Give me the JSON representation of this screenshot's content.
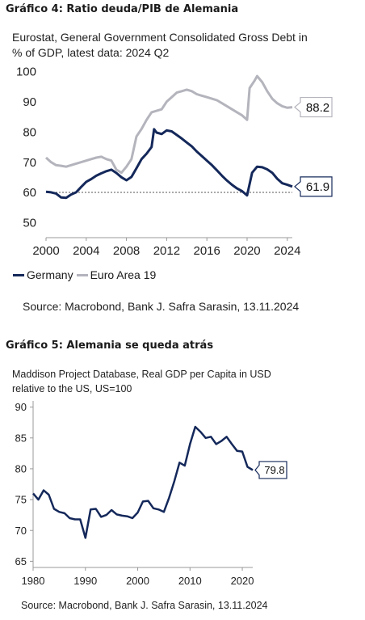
{
  "chart_data": [
    {
      "type": "line",
      "figure_caption": "Gráfico 4: Ratio deuda/PIB de Alemania",
      "subtitle_lines": [
        "Eurostat, General Government Consolidated Gross Debt in",
        "% of GDP, latest data: 2024 Q2"
      ],
      "source": "Source: Macrobond, Bank J. Safra Sarasin, 13.11.2024",
      "xlim": [
        2000,
        2024.5
      ],
      "ylim": [
        45,
        102
      ],
      "x_ticks": [
        "2000",
        "2004",
        "2008",
        "2012",
        "2016",
        "2020",
        "2024"
      ],
      "y_ticks": [
        "50",
        "60",
        "70",
        "80",
        "90",
        "100"
      ],
      "reference_line": 60,
      "series": [
        {
          "name": "Germany",
          "color": "#14285a",
          "end_label": "61.9",
          "points": [
            [
              2000,
              60.2
            ],
            [
              2000.5,
              60.0
            ],
            [
              2001,
              59.6
            ],
            [
              2001.5,
              58.3
            ],
            [
              2002,
              58.2
            ],
            [
              2002.5,
              59.3
            ],
            [
              2003,
              60.0
            ],
            [
              2003.5,
              61.8
            ],
            [
              2004,
              63.5
            ],
            [
              2004.5,
              64.4
            ],
            [
              2005,
              65.5
            ],
            [
              2005.5,
              66.3
            ],
            [
              2006,
              67.0
            ],
            [
              2006.5,
              67.5
            ],
            [
              2007,
              66.4
            ],
            [
              2007.5,
              65.0
            ],
            [
              2008,
              64.0
            ],
            [
              2008.5,
              65.1
            ],
            [
              2009,
              68.0
            ],
            [
              2009.5,
              71.0
            ],
            [
              2010,
              72.8
            ],
            [
              2010.5,
              75.0
            ],
            [
              2010.75,
              80.9
            ],
            [
              2011,
              79.8
            ],
            [
              2011.5,
              79.3
            ],
            [
              2012,
              80.5
            ],
            [
              2012.5,
              80.2
            ],
            [
              2013,
              79.0
            ],
            [
              2013.5,
              77.8
            ],
            [
              2014,
              76.5
            ],
            [
              2014.5,
              75.2
            ],
            [
              2015,
              73.5
            ],
            [
              2015.5,
              72.0
            ],
            [
              2016,
              70.5
            ],
            [
              2016.5,
              69.0
            ],
            [
              2017,
              67.3
            ],
            [
              2017.5,
              65.5
            ],
            [
              2018,
              63.9
            ],
            [
              2018.5,
              62.5
            ],
            [
              2019,
              61.3
            ],
            [
              2019.5,
              60.4
            ],
            [
              2020,
              59.0
            ],
            [
              2020.5,
              66.5
            ],
            [
              2021,
              68.5
            ],
            [
              2021.5,
              68.3
            ],
            [
              2022,
              67.6
            ],
            [
              2022.5,
              66.5
            ],
            [
              2023,
              64.5
            ],
            [
              2023.5,
              63.0
            ],
            [
              2024,
              62.5
            ],
            [
              2024.5,
              61.9
            ]
          ]
        },
        {
          "name": "Euro Area 19",
          "color": "#b4b4bd",
          "end_label": "88.2",
          "points": [
            [
              2000,
              71.5
            ],
            [
              2000.5,
              70.0
            ],
            [
              2001,
              69.0
            ],
            [
              2001.5,
              68.8
            ],
            [
              2002,
              68.5
            ],
            [
              2002.5,
              69.0
            ],
            [
              2003,
              69.5
            ],
            [
              2003.5,
              70.0
            ],
            [
              2004,
              70.5
            ],
            [
              2004.5,
              71.0
            ],
            [
              2005,
              71.5
            ],
            [
              2005.5,
              71.8
            ],
            [
              2006,
              71.0
            ],
            [
              2006.5,
              70.5
            ],
            [
              2007,
              67.5
            ],
            [
              2007.5,
              66.5
            ],
            [
              2008,
              68.5
            ],
            [
              2008.5,
              71.0
            ],
            [
              2009,
              78.5
            ],
            [
              2009.5,
              81.0
            ],
            [
              2010,
              84.0
            ],
            [
              2010.5,
              86.5
            ],
            [
              2011,
              87.0
            ],
            [
              2011.5,
              87.5
            ],
            [
              2012,
              90.0
            ],
            [
              2012.5,
              91.5
            ],
            [
              2013,
              93.0
            ],
            [
              2013.5,
              93.5
            ],
            [
              2014,
              94.0
            ],
            [
              2014.5,
              93.5
            ],
            [
              2015,
              92.5
            ],
            [
              2015.5,
              92.0
            ],
            [
              2016,
              91.5
            ],
            [
              2016.5,
              91.0
            ],
            [
              2017,
              90.5
            ],
            [
              2017.5,
              89.5
            ],
            [
              2018,
              88.5
            ],
            [
              2018.5,
              87.5
            ],
            [
              2019,
              86.5
            ],
            [
              2019.5,
              85.5
            ],
            [
              2020,
              84.0
            ],
            [
              2020.25,
              94.5
            ],
            [
              2020.75,
              97.0
            ],
            [
              2021,
              98.5
            ],
            [
              2021.5,
              96.5
            ],
            [
              2022,
              93.5
            ],
            [
              2022.5,
              91.0
            ],
            [
              2023,
              89.5
            ],
            [
              2023.5,
              88.5
            ],
            [
              2024,
              88.0
            ],
            [
              2024.5,
              88.2
            ]
          ]
        }
      ]
    },
    {
      "type": "line",
      "figure_caption": "Gráfico 5: Alemania se queda atrás",
      "subtitle_lines": [
        "Maddison Project Database, Real GDP per Capita in USD",
        "relative to the US, US=100"
      ],
      "source": "Source: Macrobond, Bank J. Safra Sarasin, 13.11.2024",
      "xlim": [
        1980,
        2022
      ],
      "ylim": [
        64,
        91
      ],
      "x_ticks": [
        "1980",
        "1990",
        "2000",
        "2010",
        "2020"
      ],
      "y_ticks": [
        "65",
        "70",
        "75",
        "80",
        "85",
        "90"
      ],
      "series": [
        {
          "name": "Germany",
          "color": "#14285a",
          "end_label": "79.8",
          "points": [
            [
              1980,
              76.0
            ],
            [
              1981,
              75.0
            ],
            [
              1982,
              76.5
            ],
            [
              1983,
              75.8
            ],
            [
              1984,
              73.5
            ],
            [
              1985,
              73.0
            ],
            [
              1986,
              72.8
            ],
            [
              1987,
              72.0
            ],
            [
              1988,
              71.8
            ],
            [
              1989,
              71.8
            ],
            [
              1990,
              68.8
            ],
            [
              1991,
              73.4
            ],
            [
              1992,
              73.5
            ],
            [
              1993,
              72.2
            ],
            [
              1994,
              72.5
            ],
            [
              1995,
              73.3
            ],
            [
              1996,
              72.6
            ],
            [
              1997,
              72.4
            ],
            [
              1998,
              72.3
            ],
            [
              1999,
              72.0
            ],
            [
              2000,
              72.9
            ],
            [
              2001,
              74.7
            ],
            [
              2002,
              74.8
            ],
            [
              2003,
              73.6
            ],
            [
              2004,
              73.4
            ],
            [
              2005,
              73.0
            ],
            [
              2006,
              75.3
            ],
            [
              2007,
              78.0
            ],
            [
              2008,
              81.0
            ],
            [
              2009,
              80.5
            ],
            [
              2010,
              84.0
            ],
            [
              2011,
              86.8
            ],
            [
              2012,
              86.0
            ],
            [
              2013,
              85.0
            ],
            [
              2014,
              85.2
            ],
            [
              2015,
              84.0
            ],
            [
              2016,
              84.5
            ],
            [
              2017,
              85.2
            ],
            [
              2018,
              84.0
            ],
            [
              2019,
              82.9
            ],
            [
              2020,
              82.8
            ],
            [
              2021,
              80.3
            ],
            [
              2022,
              79.8
            ]
          ]
        }
      ]
    }
  ]
}
